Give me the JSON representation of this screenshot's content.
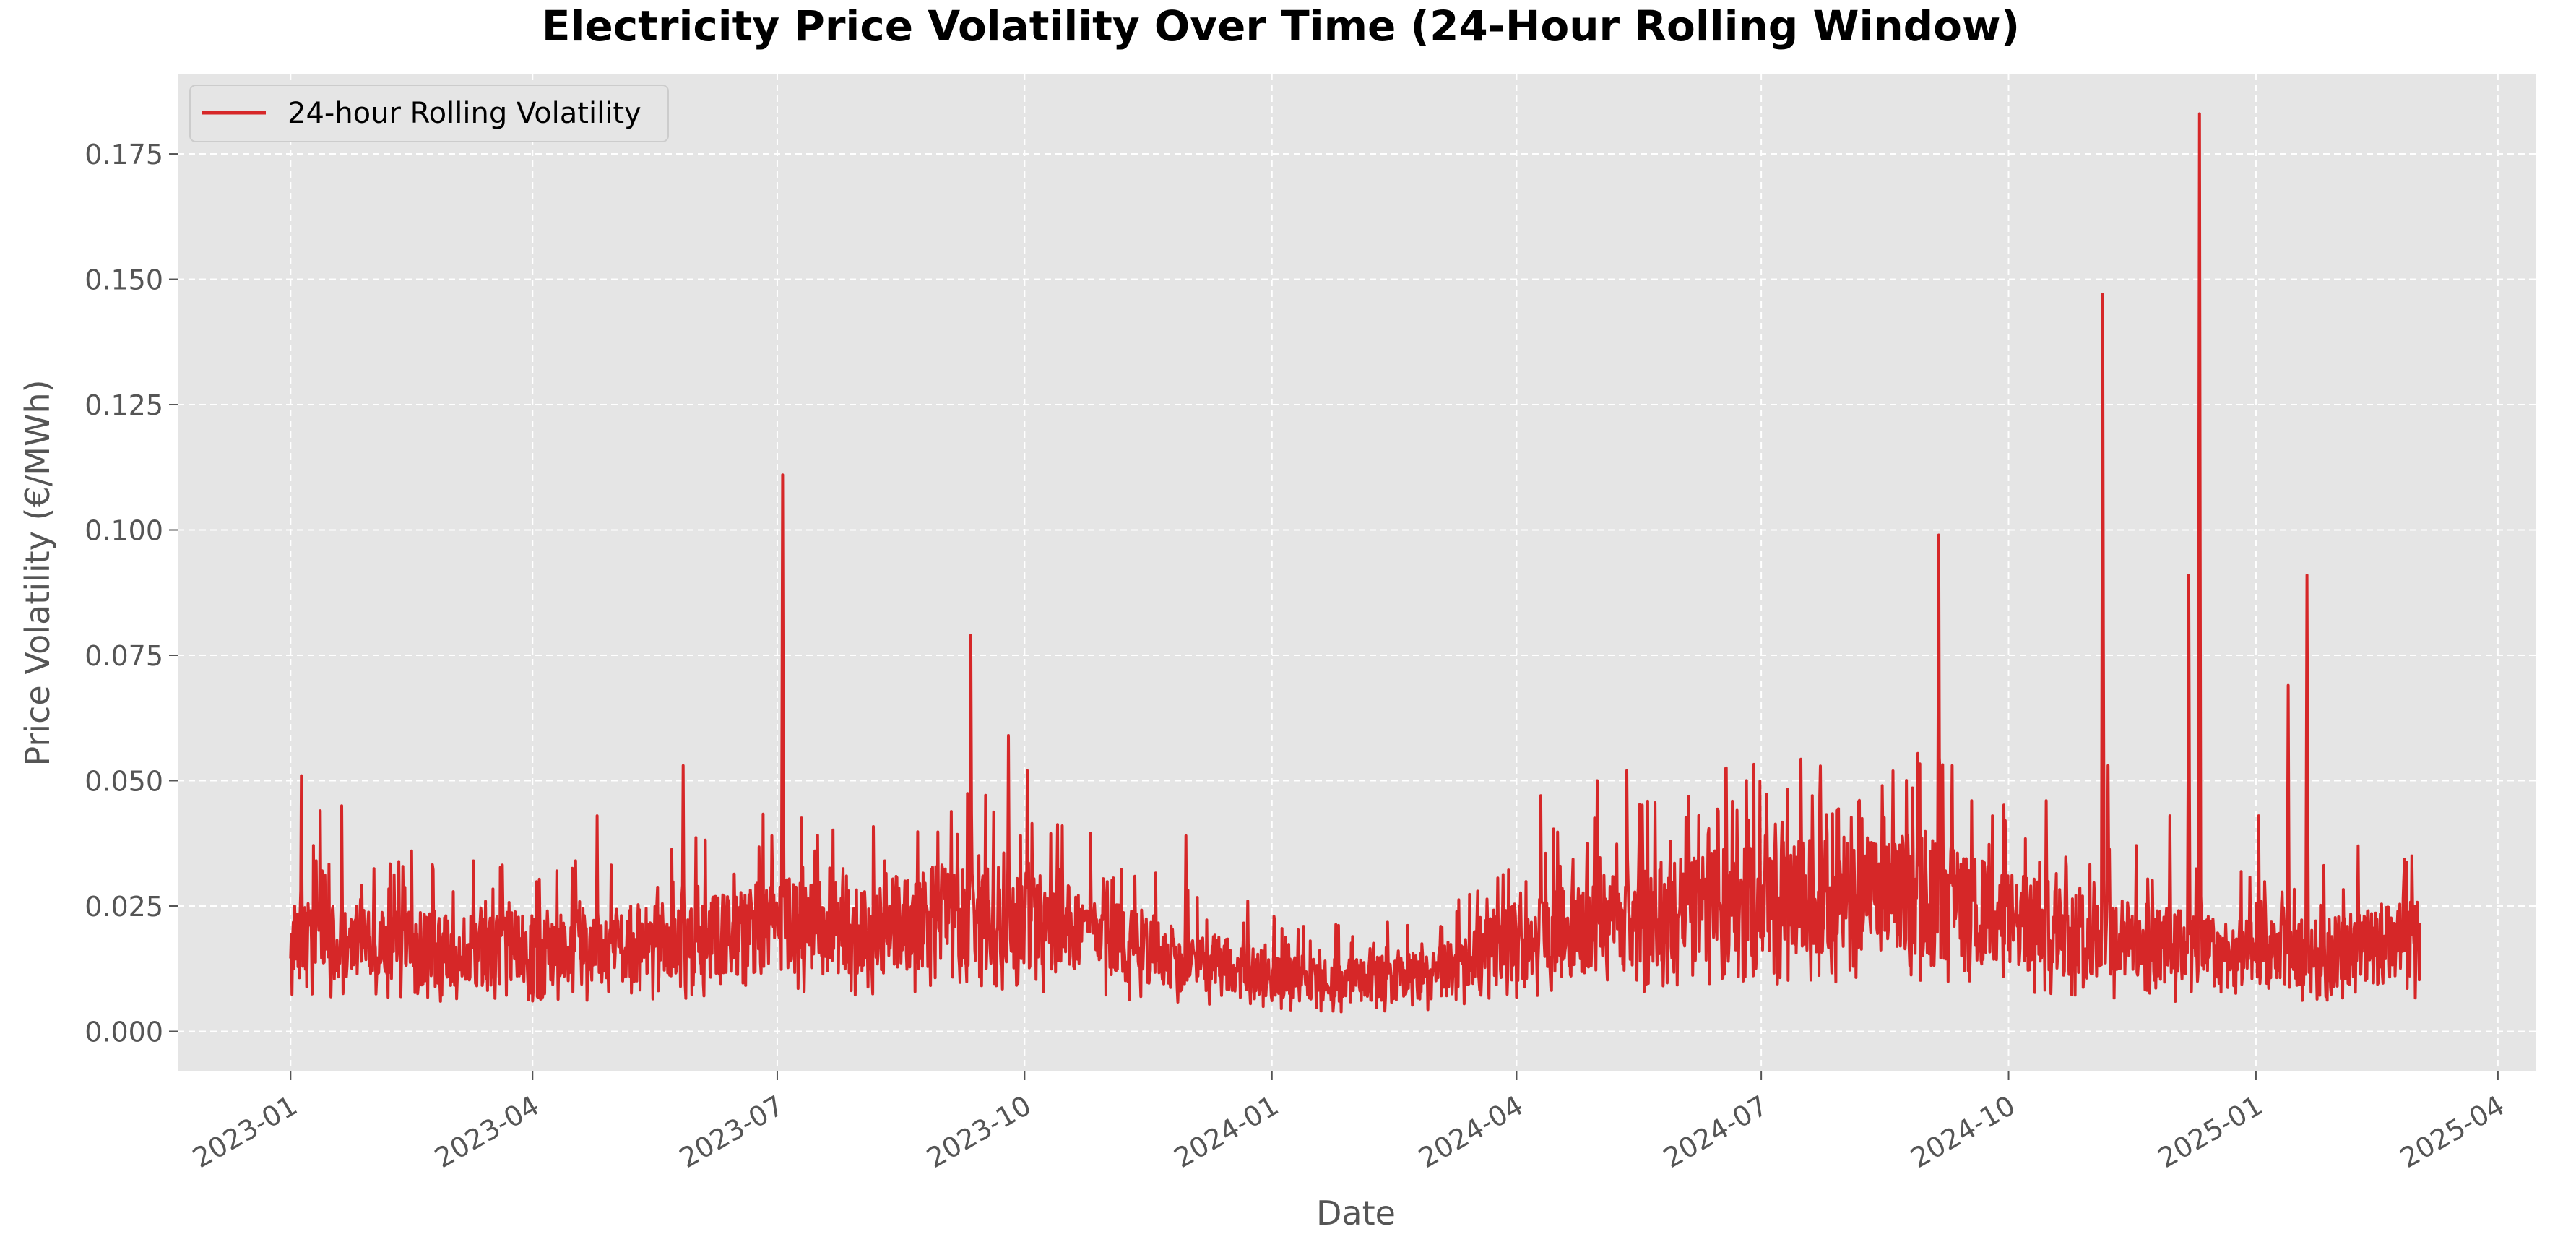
{
  "chart_data": {
    "type": "line",
    "title": "Electricity Price Volatility Over Time (24-Hour Rolling Window)",
    "xlabel": "Date",
    "ylabel": "Price Volatility (€/MWh)",
    "x_range": [
      "2022-11-20",
      "2025-04-15"
    ],
    "ylim": [
      -0.008,
      0.191
    ],
    "x_ticks": [
      "2023-01",
      "2023-04",
      "2023-07",
      "2023-10",
      "2024-01",
      "2024-04",
      "2024-07",
      "2024-10",
      "2025-01",
      "2025-04"
    ],
    "y_ticks": [
      0.0,
      0.025,
      0.05,
      0.075,
      0.1,
      0.125,
      0.15,
      0.175
    ],
    "y_tick_labels": [
      "0.000",
      "0.025",
      "0.050",
      "0.075",
      "0.100",
      "0.125",
      "0.150",
      "0.175"
    ],
    "grid": true,
    "legend_position": "top-left",
    "series": [
      {
        "name": "24-hour Rolling Volatility",
        "color": "#d62728",
        "base_levels": [
          [
            "2023-01-01",
            0.018
          ],
          [
            "2023-02-01",
            0.017
          ],
          [
            "2023-03-01",
            0.016
          ],
          [
            "2023-04-01",
            0.017
          ],
          [
            "2023-05-01",
            0.017
          ],
          [
            "2023-06-01",
            0.019
          ],
          [
            "2023-07-01",
            0.021
          ],
          [
            "2023-08-01",
            0.02
          ],
          [
            "2023-09-01",
            0.023
          ],
          [
            "2023-10-01",
            0.022
          ],
          [
            "2023-11-01",
            0.019
          ],
          [
            "2023-12-01",
            0.014
          ],
          [
            "2024-01-01",
            0.011
          ],
          [
            "2024-02-01",
            0.01
          ],
          [
            "2024-03-01",
            0.011
          ],
          [
            "2024-04-01",
            0.018
          ],
          [
            "2024-05-01",
            0.021
          ],
          [
            "2024-06-01",
            0.024
          ],
          [
            "2024-07-01",
            0.026
          ],
          [
            "2024-08-01",
            0.027
          ],
          [
            "2024-09-01",
            0.027
          ],
          [
            "2024-10-01",
            0.022
          ],
          [
            "2024-11-01",
            0.019
          ],
          [
            "2024-12-01",
            0.017
          ],
          [
            "2025-01-01",
            0.015
          ],
          [
            "2025-02-01",
            0.016
          ],
          [
            "2025-03-01",
            0.018
          ]
        ],
        "peaks": [
          [
            "2023-01-05",
            0.051
          ],
          [
            "2023-01-12",
            0.044
          ],
          [
            "2023-01-20",
            0.045
          ],
          [
            "2023-02-15",
            0.036
          ],
          [
            "2023-03-10",
            0.034
          ],
          [
            "2023-04-10",
            0.032
          ],
          [
            "2023-04-25",
            0.043
          ],
          [
            "2023-05-27",
            0.053
          ],
          [
            "2023-06-29",
            0.039
          ],
          [
            "2023-07-03",
            0.111
          ],
          [
            "2023-07-15",
            0.036
          ],
          [
            "2023-08-10",
            0.034
          ],
          [
            "2023-09-11",
            0.079
          ],
          [
            "2023-09-25",
            0.059
          ],
          [
            "2023-10-02",
            0.052
          ],
          [
            "2023-10-15",
            0.041
          ],
          [
            "2023-11-30",
            0.039
          ],
          [
            "2023-12-23",
            0.026
          ],
          [
            "2024-04-10",
            0.047
          ],
          [
            "2024-05-01",
            0.05
          ],
          [
            "2024-05-12",
            0.052
          ],
          [
            "2024-06-15",
            0.044
          ],
          [
            "2024-07-20",
            0.047
          ],
          [
            "2024-08-15",
            0.049
          ],
          [
            "2024-09-05",
            0.099
          ],
          [
            "2024-09-10",
            0.053
          ],
          [
            "2024-09-25",
            0.043
          ],
          [
            "2024-10-15",
            0.046
          ],
          [
            "2024-11-05",
            0.147
          ],
          [
            "2024-11-07",
            0.053
          ],
          [
            "2024-11-30",
            0.043
          ],
          [
            "2024-12-11",
            0.183
          ],
          [
            "2024-12-07",
            0.091
          ],
          [
            "2025-01-02",
            0.043
          ],
          [
            "2025-01-13",
            0.069
          ],
          [
            "2025-01-20",
            0.091
          ],
          [
            "2025-02-08",
            0.037
          ],
          [
            "2025-02-28",
            0.035
          ]
        ],
        "end_date": "2025-03-03"
      }
    ]
  }
}
